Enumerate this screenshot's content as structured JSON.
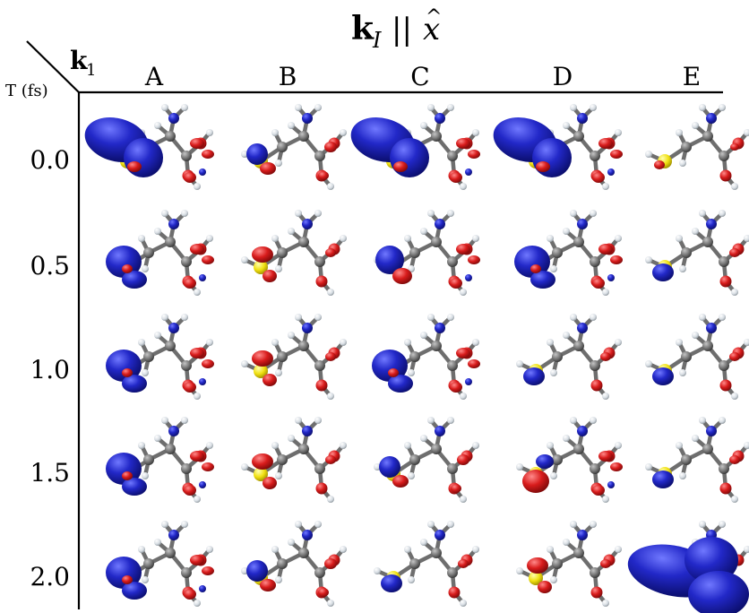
{
  "title": {
    "k": "k",
    "sub": "I",
    "rest": "||",
    "x": "x",
    "hat": "^"
  },
  "corner": {
    "k1_k": "k",
    "k1_sub": "1",
    "time_label": "T (fs)"
  },
  "columns": [
    "A",
    "B",
    "C",
    "D",
    "E"
  ],
  "rows": [
    "0.0",
    "0.5",
    "1.0",
    "1.5",
    "2.0"
  ],
  "colors": {
    "negative_lobe": "#1e22b8",
    "positive_lobe": "#d41a1a",
    "sulfur": "#f1e315",
    "carbon": "#7a7a7a",
    "nitrogen": "#2a3fbf",
    "oxygen": "#d82020",
    "hydrogen": "#dde4ea"
  },
  "cells": [
    [
      "big-blue",
      "small-mixed",
      "big-blue",
      "big-blue",
      "tiny-red"
    ],
    [
      "medium-blue",
      "small-red",
      "medium-mixed",
      "medium-blue",
      "small-blue"
    ],
    [
      "medium-blue",
      "small-red",
      "medium-blue",
      "small-blue",
      "small-blue"
    ],
    [
      "medium-blue",
      "small-red",
      "small-mixed",
      "medium-red",
      "small-blue"
    ],
    [
      "medium-blue",
      "small-mixed",
      "small-blue",
      "small-red",
      "huge-blue"
    ]
  ]
}
